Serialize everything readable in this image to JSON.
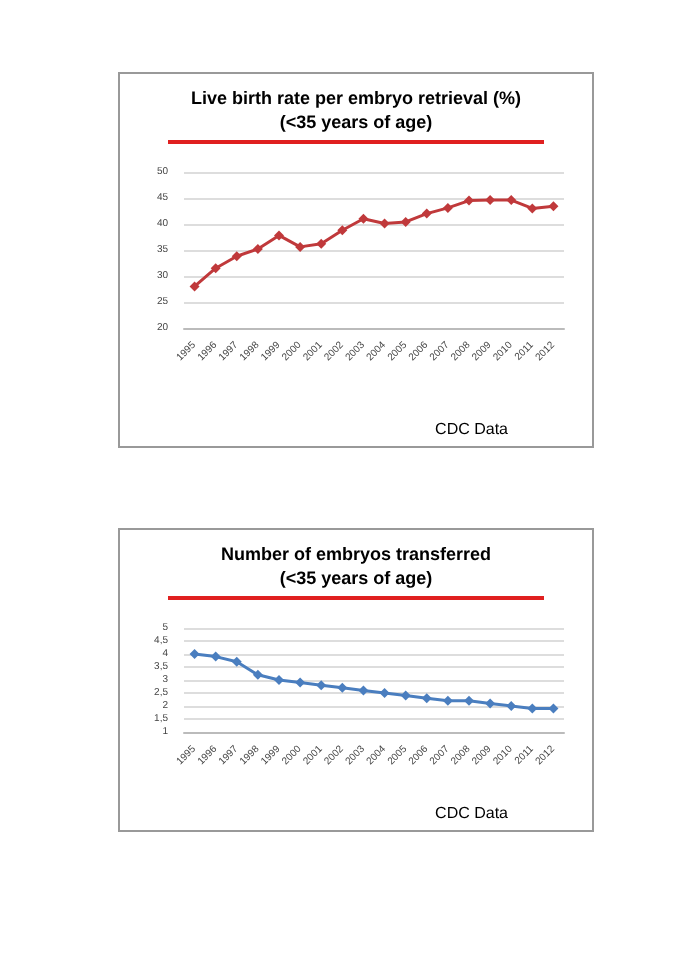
{
  "chart_data": [
    {
      "type": "line",
      "title": "Live birth rate per embryo retrieval (%)\n(<35 years of age)",
      "categories": [
        "1995",
        "1996",
        "1997",
        "1998",
        "1999",
        "2000",
        "2001",
        "2002",
        "2003",
        "2004",
        "2005",
        "2006",
        "2007",
        "2008",
        "2009",
        "2010",
        "2011",
        "2012"
      ],
      "series": [
        {
          "color": "#c0393b",
          "values": [
            28,
            31.5,
            33.8,
            35.2,
            37.8,
            35.6,
            36.2,
            38.8,
            41,
            40.1,
            40.4,
            42,
            43.1,
            44.5,
            44.6,
            44.6,
            43,
            43.4
          ]
        }
      ],
      "ylim": [
        20,
        50
      ],
      "yticks": [
        20,
        25,
        30,
        35,
        40,
        45,
        50
      ],
      "grid": "y",
      "marker": "diamond",
      "annotations": [
        "CDC Data"
      ]
    },
    {
      "type": "line",
      "title": "Number of embryos transferred\n(<35 years of age)",
      "categories": [
        "1995",
        "1996",
        "1997",
        "1998",
        "1999",
        "2000",
        "2001",
        "2002",
        "2003",
        "2004",
        "2005",
        "2006",
        "2007",
        "2008",
        "2009",
        "2010",
        "2011",
        "2012"
      ],
      "series": [
        {
          "color": "#4a7ebf",
          "values": [
            4.0,
            3.9,
            3.7,
            3.2,
            3.0,
            2.9,
            2.8,
            2.7,
            2.6,
            2.5,
            2.4,
            2.3,
            2.2,
            2.2,
            2.1,
            2.0,
            1.9,
            1.9
          ]
        }
      ],
      "ylim": [
        1,
        5
      ],
      "yticks": [
        1,
        {
          "value": 1.5,
          "label": "1,5"
        },
        2,
        {
          "value": 2.5,
          "label": "2,5"
        },
        3,
        {
          "value": 3.5,
          "label": "3,5"
        },
        4,
        {
          "value": 4.5,
          "label": "4,5"
        },
        5
      ],
      "grid": "y",
      "marker": "diamond",
      "annotations": [
        "CDC Data"
      ]
    }
  ]
}
